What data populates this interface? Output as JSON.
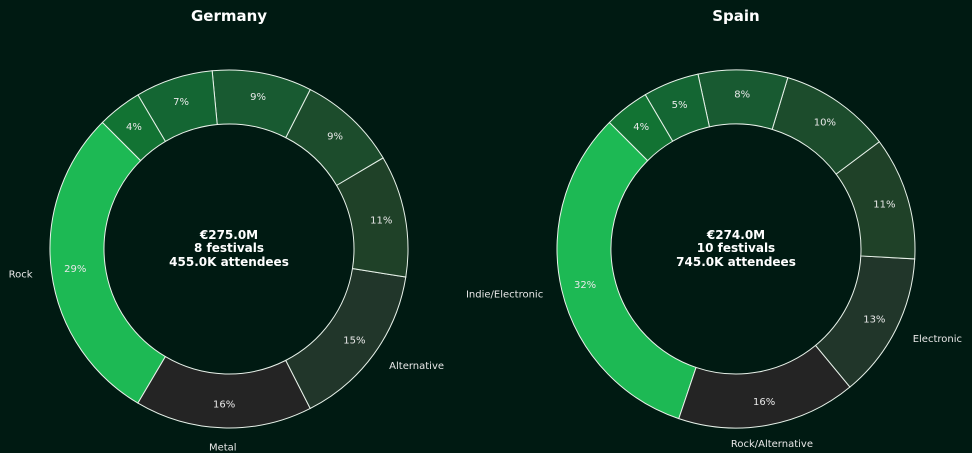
{
  "chart_data": [
    {
      "type": "pie",
      "variant": "donut",
      "title": "Germany",
      "center_lines": [
        "€275.0M",
        "8 festivals",
        "455.0K attendees"
      ],
      "slices": [
        {
          "label": "Rock",
          "percent": "29%",
          "value": 29.0,
          "color": "#1db954"
        },
        {
          "label": "Metal",
          "percent": "16%",
          "value": 16.0,
          "color": "#242424"
        },
        {
          "label": "Alternative",
          "percent": "15%",
          "value": 15.0,
          "color": "#21362a"
        },
        {
          "label": "",
          "percent": "11%",
          "value": 11.0,
          "color": "#1f4128"
        },
        {
          "label": "",
          "percent": "9%",
          "value": 9.0,
          "color": "#1c4c2c"
        },
        {
          "label": "",
          "percent": "9%",
          "value": 9.0,
          "color": "#185a31"
        },
        {
          "label": "",
          "percent": "7%",
          "value": 7.0,
          "color": "#146633"
        },
        {
          "label": "",
          "percent": "4%",
          "value": 4.0,
          "color": "#127333"
        }
      ]
    },
    {
      "type": "pie",
      "variant": "donut",
      "title": "Spain",
      "center_lines": [
        "€274.0M",
        "10 festivals",
        "745.0K attendees"
      ],
      "slices": [
        {
          "label": "Indie/Electronic",
          "percent": "32%",
          "value": 32.0,
          "color": "#1db954"
        },
        {
          "label": "Rock/Alternative",
          "percent": "16%",
          "value": 16.0,
          "color": "#242424"
        },
        {
          "label": "Electronic",
          "percent": "13%",
          "value": 13.0,
          "color": "#21362a"
        },
        {
          "label": "",
          "percent": "11%",
          "value": 11.0,
          "color": "#1f4128"
        },
        {
          "label": "",
          "percent": "10%",
          "value": 10.0,
          "color": "#1c4c2c"
        },
        {
          "label": "",
          "percent": "8%",
          "value": 8.0,
          "color": "#185a31"
        },
        {
          "label": "",
          "percent": "5%",
          "value": 5.0,
          "color": "#146633"
        },
        {
          "label": "",
          "percent": "4%",
          "value": 4.0,
          "color": "#127333"
        }
      ]
    }
  ],
  "colors": {
    "background": "#001a12",
    "accent": "#1db954",
    "separator": "#e8f2ea"
  }
}
